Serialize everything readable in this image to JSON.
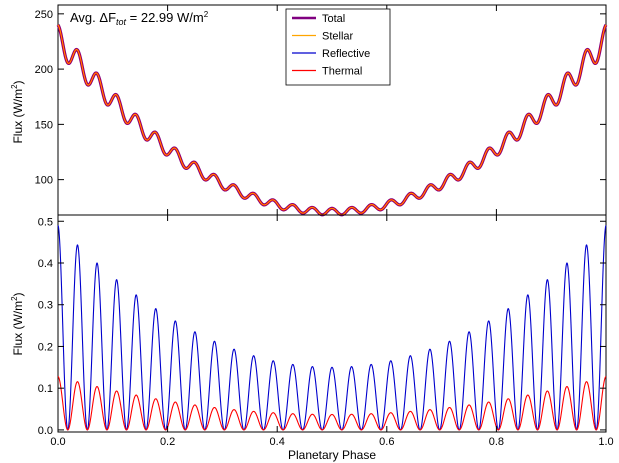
{
  "chart_data": [
    {
      "type": "line",
      "panel": "top",
      "xlabel": "",
      "ylabel": "Flux (W/m²)",
      "xlim": [
        0.0,
        1.0
      ],
      "ylim": [
        68,
        258
      ],
      "yticks": [
        100,
        150,
        200,
        250
      ],
      "yticklabels": [
        "100",
        "150",
        "200",
        "250"
      ],
      "annotation": {
        "prefix": "Avg. ",
        "delta": "ΔF",
        "subscript": "tot",
        "suffix": " = 22.99 W/m",
        "sup": "2"
      },
      "legend": {
        "placement": "top-center",
        "entries": [
          {
            "name": "Total",
            "color": "#800080"
          },
          {
            "name": "Stellar",
            "color": "#FFA500"
          },
          {
            "name": "Reflective",
            "color": "#0000CD"
          },
          {
            "name": "Thermal",
            "color": "#FF0000"
          }
        ]
      },
      "model": {
        "description_free": true,
        "base_min": 71,
        "base_max": 228,
        "curve_power": 2,
        "ripple_cycles": 28,
        "ripple_amp_min": 3,
        "ripple_amp_max": 12
      },
      "series": [
        {
          "name": "Total",
          "color": "#800080"
        },
        {
          "name": "Thermal",
          "color": "#FF0000"
        },
        {
          "name": "Stellar",
          "color": "#FFA500"
        }
      ]
    },
    {
      "type": "line",
      "panel": "bottom",
      "xlabel": "Planetary Phase",
      "ylabel": "Flux (W/m²)",
      "xlim": [
        0.0,
        1.0
      ],
      "ylim": [
        -0.005,
        0.515
      ],
      "xticks": [
        0.0,
        0.2,
        0.4,
        0.6,
        0.8,
        1.0
      ],
      "xticklabels": [
        "0.0",
        "0.2",
        "0.4",
        "0.6",
        "0.8",
        "1.0"
      ],
      "yticks": [
        0.0,
        0.1,
        0.2,
        0.3,
        0.4,
        0.5
      ],
      "yticklabels": [
        "0.0",
        "0.1",
        "0.2",
        "0.3",
        "0.4",
        "0.5"
      ],
      "model": {
        "cycles": 28,
        "curve_power": 2,
        "reflective_min": 0.15,
        "reflective_max": 0.49,
        "thermal_min": 0.037,
        "thermal_max": 0.128
      },
      "series": [
        {
          "name": "Reflective",
          "color": "#0000CD"
        },
        {
          "name": "Thermal",
          "color": "#FF0000"
        }
      ]
    }
  ],
  "axis_labels": {
    "top_ylabel_main": "Flux (W/m",
    "top_ylabel_sup": "2",
    "top_ylabel_end": ")",
    "bottom_ylabel_main": "Flux (W/m",
    "bottom_ylabel_sup": "2",
    "bottom_ylabel_end": ")",
    "xlabel": "Planetary Phase"
  }
}
